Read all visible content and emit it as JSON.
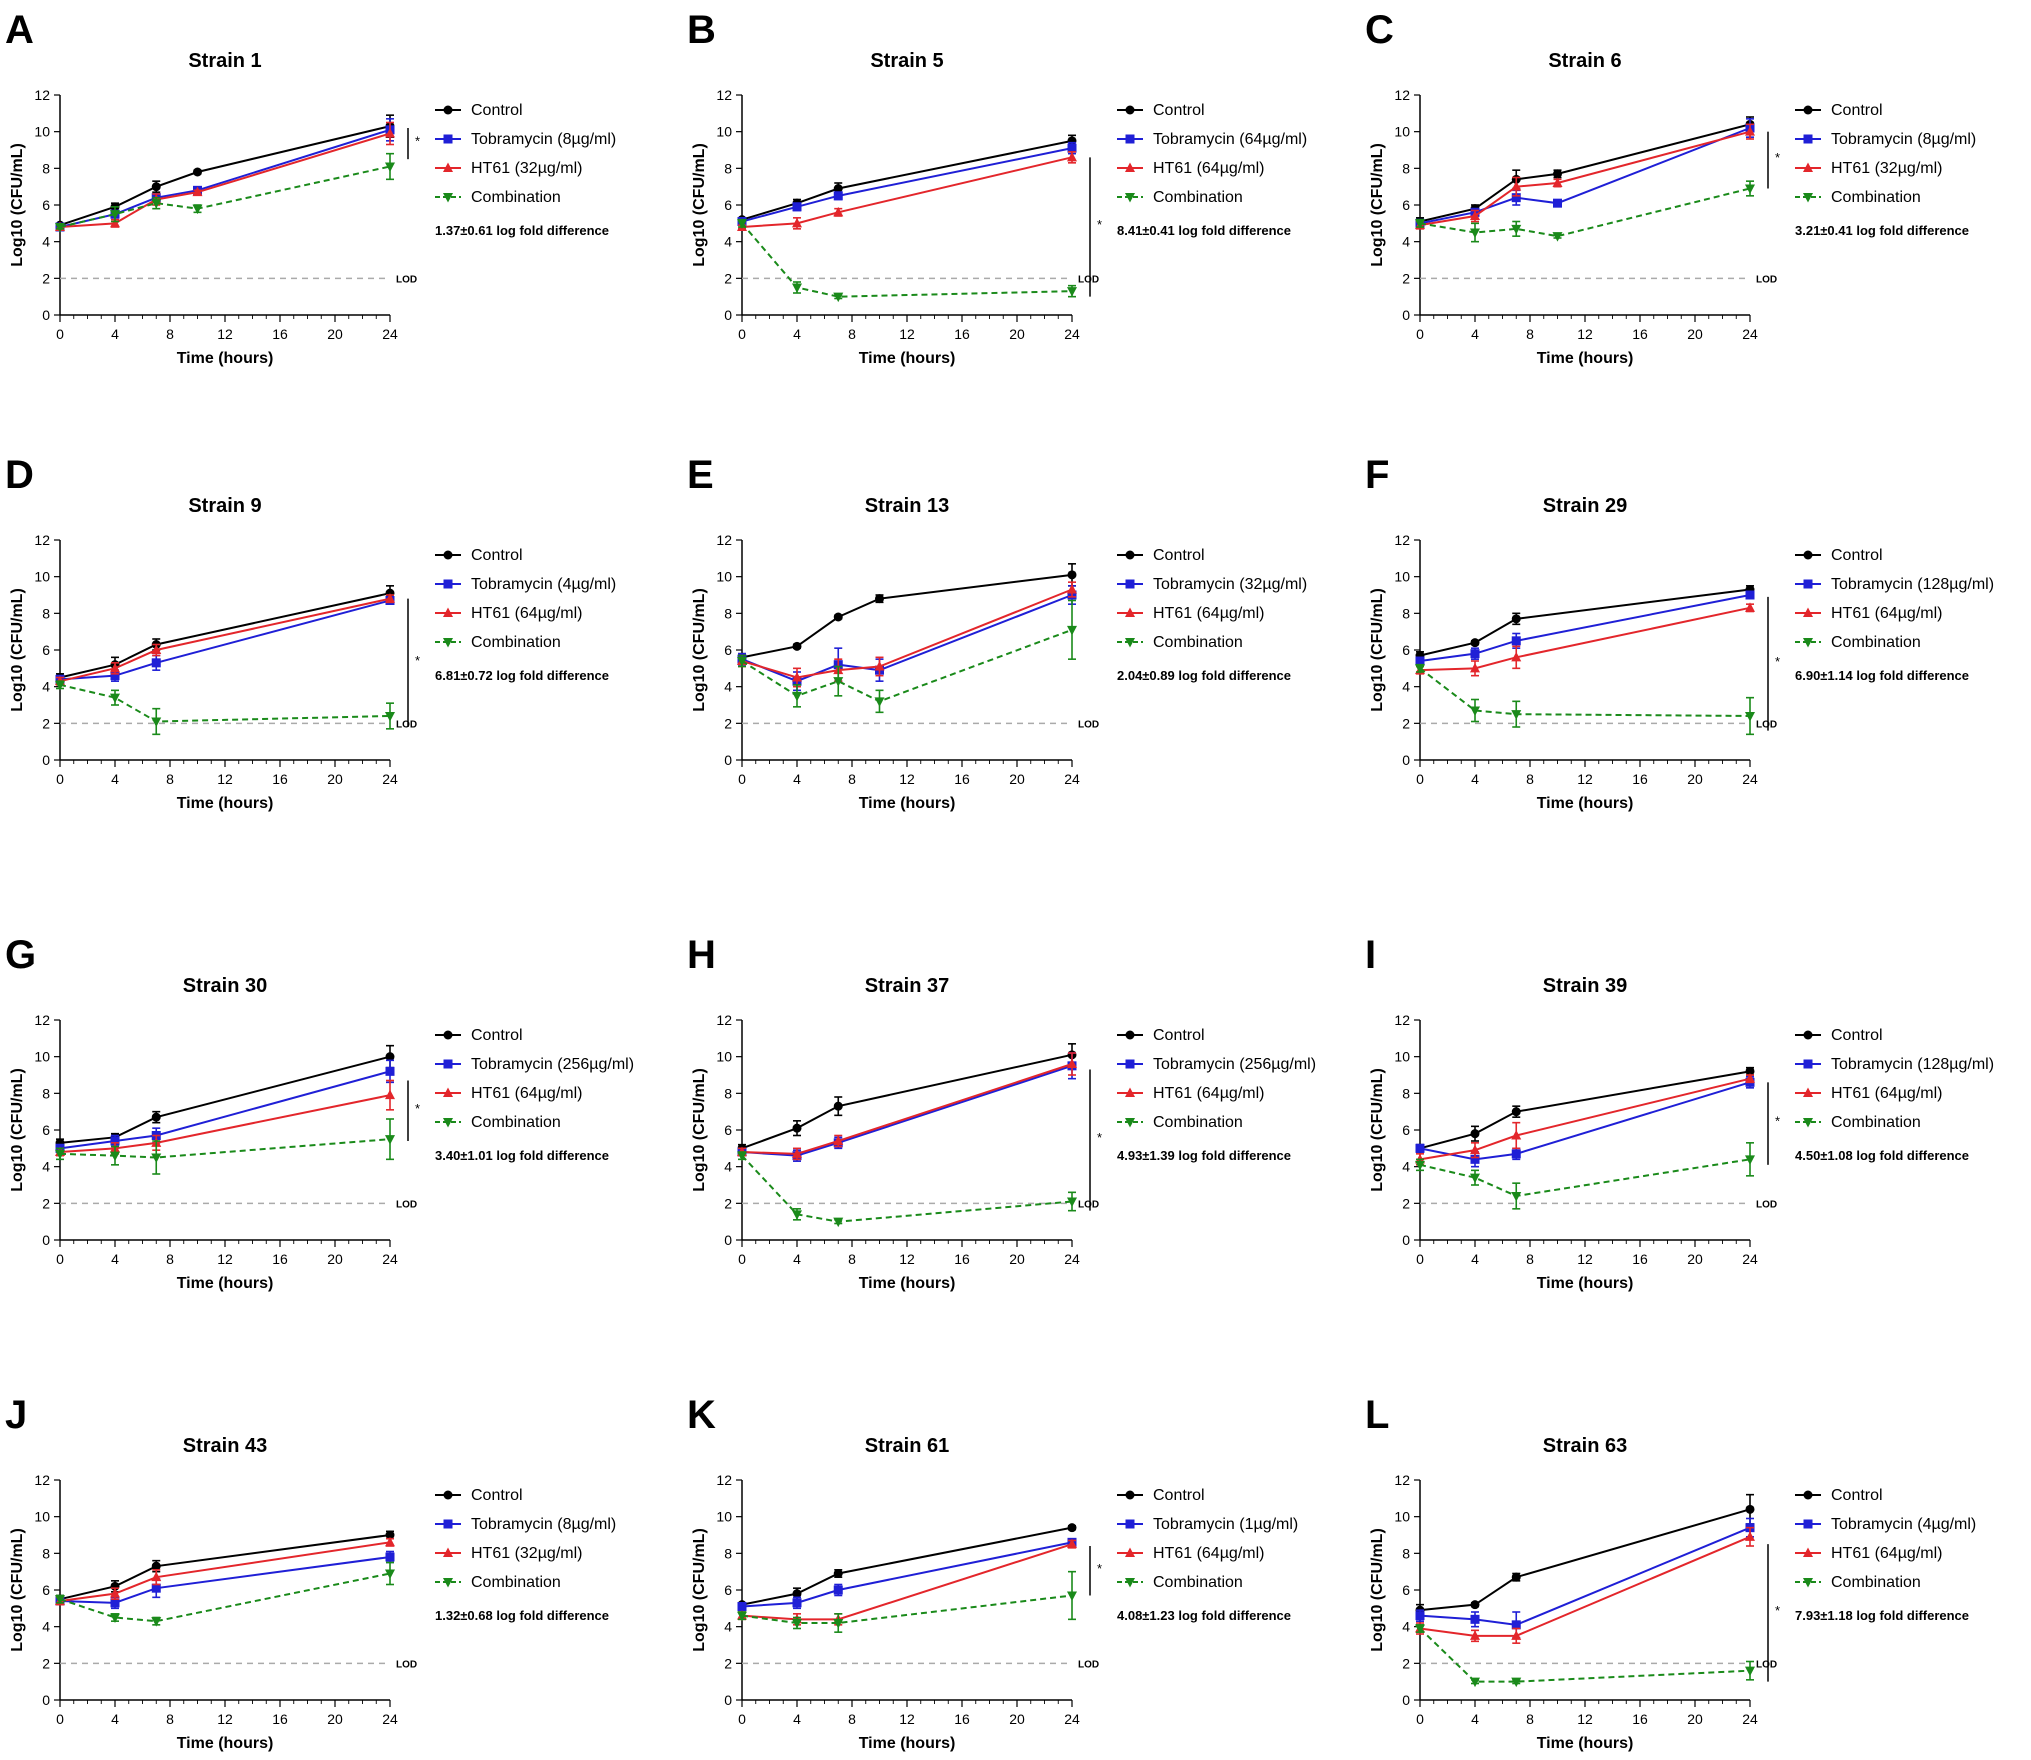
{
  "figure": {
    "xlabel": "Time (hours)",
    "ylabel": "Log10 (CFU/mL)",
    "lod_label": "LOD",
    "lod_value": 2,
    "significance_marker": "*",
    "xticks": [
      0,
      4,
      8,
      12,
      16,
      20,
      24
    ],
    "yticks": [
      0,
      2,
      4,
      6,
      8,
      10,
      12
    ],
    "xlim": [
      0,
      24
    ],
    "ylim": [
      0,
      12
    ],
    "series_colors": {
      "Control": "#000000",
      "Tobramycin": "#1f1fd6",
      "HT61": "#e3262b",
      "Combination": "#1a8a1a"
    }
  },
  "chart_data": [
    {
      "letter": "A",
      "type": "line",
      "title": "Strain 1",
      "x": [
        0,
        4,
        7,
        10,
        24
      ],
      "series": [
        {
          "name": "Control",
          "values": [
            4.9,
            5.9,
            7.0,
            7.8,
            10.3
          ],
          "err": [
            0.1,
            0.2,
            0.3,
            0.1,
            0.6
          ]
        },
        {
          "name": "Tobramycin (8µg/ml)",
          "values": [
            4.8,
            5.5,
            6.4,
            6.8,
            10.1
          ],
          "err": [
            0.1,
            0.2,
            0.2,
            0.1,
            0.6
          ]
        },
        {
          "name": "HT61 (32µg/ml)",
          "values": [
            4.8,
            5.0,
            6.3,
            6.7,
            9.9
          ],
          "err": [
            0.1,
            0.2,
            0.3,
            0.1,
            0.6
          ]
        },
        {
          "name": "Combination",
          "values": [
            4.8,
            5.5,
            6.1,
            5.8,
            8.1
          ],
          "err": [
            0.1,
            0.4,
            0.3,
            0.2,
            0.7
          ]
        }
      ],
      "fold_text": "1.37±0.61 log fold difference",
      "sig_top": 10.2,
      "sig_bottom": 8.5
    },
    {
      "letter": "B",
      "type": "line",
      "title": "Strain 5",
      "x": [
        0,
        4,
        7,
        24
      ],
      "series": [
        {
          "name": "Control",
          "values": [
            5.2,
            6.1,
            6.9,
            9.5
          ],
          "err": [
            0.1,
            0.2,
            0.3,
            0.3
          ]
        },
        {
          "name": "Tobramycin (64µg/ml)",
          "values": [
            5.1,
            5.9,
            6.5,
            9.1
          ],
          "err": [
            0.1,
            0.2,
            0.2,
            0.3
          ]
        },
        {
          "name": "HT61 (64µg/ml)",
          "values": [
            4.8,
            5.0,
            5.6,
            8.6
          ],
          "err": [
            0.1,
            0.3,
            0.2,
            0.3
          ]
        },
        {
          "name": "Combination",
          "values": [
            5.0,
            1.5,
            1.0,
            1.3
          ],
          "err": [
            0.2,
            0.3,
            0.1,
            0.3
          ]
        }
      ],
      "fold_text": "8.41±0.41 log fold difference",
      "sig_top": 8.6,
      "sig_bottom": 1.0
    },
    {
      "letter": "C",
      "type": "line",
      "title": "Strain 6",
      "x": [
        0,
        4,
        7,
        10,
        24
      ],
      "series": [
        {
          "name": "Control",
          "values": [
            5.1,
            5.8,
            7.4,
            7.7,
            10.4
          ],
          "err": [
            0.2,
            0.2,
            0.5,
            0.2,
            0.4
          ]
        },
        {
          "name": "Tobramycin (8µg/ml)",
          "values": [
            5.0,
            5.6,
            6.4,
            6.1,
            10.2
          ],
          "err": [
            0.2,
            0.2,
            0.4,
            0.1,
            0.5
          ]
        },
        {
          "name": "HT61 (32µg/ml)",
          "values": [
            4.9,
            5.4,
            7.0,
            7.2,
            10.0
          ],
          "err": [
            0.2,
            0.3,
            0.5,
            0.2,
            0.4
          ]
        },
        {
          "name": "Combination",
          "values": [
            5.0,
            4.5,
            4.7,
            4.3,
            6.9
          ],
          "err": [
            0.2,
            0.5,
            0.4,
            0.1,
            0.4
          ]
        }
      ],
      "fold_text": "3.21±0.41 log fold difference",
      "sig_top": 10.0,
      "sig_bottom": 6.9
    },
    {
      "letter": "D",
      "type": "line",
      "title": "Strain 9",
      "x": [
        0,
        4,
        7,
        24
      ],
      "series": [
        {
          "name": "Control",
          "values": [
            4.5,
            5.2,
            6.3,
            9.1
          ],
          "err": [
            0.2,
            0.4,
            0.3,
            0.4
          ]
        },
        {
          "name": "Tobramycin (4µg/ml)",
          "values": [
            4.4,
            4.6,
            5.3,
            8.7
          ],
          "err": [
            0.2,
            0.3,
            0.4,
            0.2
          ]
        },
        {
          "name": "HT61 (64µg/ml)",
          "values": [
            4.3,
            5.0,
            6.0,
            8.8
          ],
          "err": [
            0.2,
            0.3,
            0.3,
            0.2
          ]
        },
        {
          "name": "Combination",
          "values": [
            4.1,
            3.4,
            2.1,
            2.4
          ],
          "err": [
            0.2,
            0.4,
            0.7,
            0.7
          ]
        }
      ],
      "fold_text": "6.81±0.72 log fold difference",
      "sig_top": 8.8,
      "sig_bottom": 1.8
    },
    {
      "letter": "E",
      "type": "line",
      "title": "Strain 13",
      "x": [
        0,
        4,
        7,
        10,
        24
      ],
      "series": [
        {
          "name": "Control",
          "values": [
            5.6,
            6.2,
            7.8,
            8.8,
            10.1
          ],
          "err": [
            0.2,
            0.1,
            0.1,
            0.2,
            0.6
          ]
        },
        {
          "name": "Tobramycin (32µg/ml)",
          "values": [
            5.5,
            4.3,
            5.2,
            4.9,
            9.0
          ],
          "err": [
            0.3,
            0.5,
            0.9,
            0.6,
            0.5
          ]
        },
        {
          "name": "HT61 (64µg/ml)",
          "values": [
            5.4,
            4.5,
            4.9,
            5.1,
            9.3
          ],
          "err": [
            0.3,
            0.5,
            0.6,
            0.5,
            0.4
          ]
        },
        {
          "name": "Combination",
          "values": [
            5.4,
            3.5,
            4.3,
            3.2,
            7.1
          ],
          "err": [
            0.3,
            0.6,
            0.8,
            0.6,
            1.6
          ]
        }
      ],
      "fold_text": "2.04±0.89 log fold difference"
    },
    {
      "letter": "F",
      "type": "line",
      "title": "Strain 29",
      "x": [
        0,
        4,
        7,
        24
      ],
      "series": [
        {
          "name": "Control",
          "values": [
            5.7,
            6.4,
            7.7,
            9.3
          ],
          "err": [
            0.2,
            0.1,
            0.3,
            0.2
          ]
        },
        {
          "name": "Tobramycin (128µg/ml)",
          "values": [
            5.4,
            5.8,
            6.5,
            9.0
          ],
          "err": [
            0.2,
            0.3,
            0.4,
            0.2
          ]
        },
        {
          "name": "HT61 (64µg/ml)",
          "values": [
            4.9,
            5.0,
            5.6,
            8.3
          ],
          "err": [
            0.2,
            0.4,
            0.6,
            0.2
          ]
        },
        {
          "name": "Combination",
          "values": [
            5.0,
            2.7,
            2.5,
            2.4
          ],
          "err": [
            0.2,
            0.6,
            0.7,
            1.0
          ]
        }
      ],
      "fold_text": "6.90±1.14 log fold difference",
      "sig_top": 8.9,
      "sig_bottom": 1.6
    },
    {
      "letter": "G",
      "type": "line",
      "title": "Strain 30",
      "x": [
        0,
        4,
        7,
        24
      ],
      "series": [
        {
          "name": "Control",
          "values": [
            5.3,
            5.6,
            6.7,
            10.0
          ],
          "err": [
            0.2,
            0.2,
            0.3,
            0.6
          ]
        },
        {
          "name": "Tobramycin (256µg/ml)",
          "values": [
            5.0,
            5.4,
            5.7,
            9.2
          ],
          "err": [
            0.2,
            0.3,
            0.4,
            0.6
          ]
        },
        {
          "name": "HT61 (64µg/ml)",
          "values": [
            4.8,
            5.0,
            5.3,
            7.9
          ],
          "err": [
            0.2,
            0.3,
            0.4,
            0.8
          ]
        },
        {
          "name": "Combination",
          "values": [
            4.7,
            4.6,
            4.5,
            5.5
          ],
          "err": [
            0.3,
            0.5,
            0.9,
            1.1
          ]
        }
      ],
      "fold_text": "3.40±1.01 log fold difference",
      "sig_top": 8.7,
      "sig_bottom": 5.4
    },
    {
      "letter": "H",
      "type": "line",
      "title": "Strain 37",
      "x": [
        0,
        4,
        7,
        24
      ],
      "series": [
        {
          "name": "Control",
          "values": [
            5.0,
            6.1,
            7.3,
            10.1
          ],
          "err": [
            0.2,
            0.4,
            0.5,
            0.6
          ]
        },
        {
          "name": "Tobramycin (256µg/ml)",
          "values": [
            4.8,
            4.6,
            5.3,
            9.5
          ],
          "err": [
            0.2,
            0.3,
            0.3,
            0.7
          ]
        },
        {
          "name": "HT61 (64µg/ml)",
          "values": [
            4.8,
            4.7,
            5.4,
            9.6
          ],
          "err": [
            0.2,
            0.3,
            0.3,
            0.6
          ]
        },
        {
          "name": "Combination",
          "values": [
            4.6,
            1.4,
            1.0,
            2.1
          ],
          "err": [
            0.2,
            0.3,
            0.1,
            0.5
          ]
        }
      ],
      "fold_text": "4.93±1.39 log fold difference",
      "sig_top": 9.3,
      "sig_bottom": 1.6
    },
    {
      "letter": "I",
      "type": "line",
      "title": "Strain 39",
      "x": [
        0,
        4,
        7,
        24
      ],
      "series": [
        {
          "name": "Control",
          "values": [
            5.0,
            5.8,
            7.0,
            9.2
          ],
          "err": [
            0.2,
            0.4,
            0.3,
            0.2
          ]
        },
        {
          "name": "Tobramycin (128µg/ml)",
          "values": [
            5.0,
            4.4,
            4.7,
            8.6
          ],
          "err": [
            0.2,
            0.4,
            0.3,
            0.3
          ]
        },
        {
          "name": "HT61 (64µg/ml)",
          "values": [
            4.4,
            4.9,
            5.7,
            8.8
          ],
          "err": [
            0.3,
            0.4,
            0.7,
            0.2
          ]
        },
        {
          "name": "Combination",
          "values": [
            4.1,
            3.4,
            2.4,
            4.4
          ],
          "err": [
            0.3,
            0.4,
            0.7,
            0.9
          ]
        }
      ],
      "fold_text": "4.50±1.08 log fold difference",
      "sig_top": 8.6,
      "sig_bottom": 4.1
    },
    {
      "letter": "J",
      "type": "line",
      "title": "Strain 43",
      "x": [
        0,
        4,
        7,
        24
      ],
      "series": [
        {
          "name": "Control",
          "values": [
            5.5,
            6.2,
            7.3,
            9.0
          ],
          "err": [
            0.2,
            0.3,
            0.3,
            0.2
          ]
        },
        {
          "name": "Tobramycin (8µg/ml)",
          "values": [
            5.4,
            5.3,
            6.1,
            7.8
          ],
          "err": [
            0.2,
            0.3,
            0.5,
            0.3
          ]
        },
        {
          "name": "HT61 (32µg/ml)",
          "values": [
            5.4,
            5.8,
            6.7,
            8.6
          ],
          "err": [
            0.2,
            0.3,
            0.4,
            0.2
          ]
        },
        {
          "name": "Combination",
          "values": [
            5.5,
            4.5,
            4.3,
            6.9
          ],
          "err": [
            0.2,
            0.2,
            0.2,
            0.6
          ]
        }
      ],
      "fold_text": "1.32±0.68 log fold difference"
    },
    {
      "letter": "K",
      "type": "line",
      "title": "Strain 61",
      "x": [
        0,
        4,
        7,
        24
      ],
      "series": [
        {
          "name": "Control",
          "values": [
            5.2,
            5.8,
            6.9,
            9.4
          ],
          "err": [
            0.1,
            0.3,
            0.2,
            0.1
          ]
        },
        {
          "name": "Tobramycin (1µg/ml)",
          "values": [
            5.1,
            5.3,
            6.0,
            8.6
          ],
          "err": [
            0.1,
            0.3,
            0.3,
            0.1
          ]
        },
        {
          "name": "HT61 (64µg/ml)",
          "values": [
            4.6,
            4.4,
            4.4,
            8.5
          ],
          "err": [
            0.2,
            0.3,
            0.3,
            0.2
          ]
        },
        {
          "name": "Combination",
          "values": [
            4.6,
            4.2,
            4.2,
            5.7
          ],
          "err": [
            0.2,
            0.3,
            0.5,
            1.3
          ]
        }
      ],
      "fold_text": "4.08±1.23 log fold difference",
      "sig_top": 8.4,
      "sig_bottom": 5.7
    },
    {
      "letter": "L",
      "type": "line",
      "title": "Strain 63",
      "x": [
        0,
        4,
        7,
        24
      ],
      "series": [
        {
          "name": "Control",
          "values": [
            4.9,
            5.2,
            6.7,
            10.4
          ],
          "err": [
            0.3,
            0.1,
            0.2,
            0.8
          ]
        },
        {
          "name": "Tobramycin (4µg/ml)",
          "values": [
            4.6,
            4.4,
            4.1,
            9.4
          ],
          "err": [
            0.3,
            0.4,
            0.7,
            0.5
          ]
        },
        {
          "name": "HT61 (64µg/ml)",
          "values": [
            3.9,
            3.5,
            3.5,
            8.9
          ],
          "err": [
            0.3,
            0.3,
            0.4,
            0.5
          ]
        },
        {
          "name": "Combination",
          "values": [
            3.9,
            1.0,
            1.0,
            1.6
          ],
          "err": [
            0.2,
            0.1,
            0.1,
            0.5
          ]
        }
      ],
      "fold_text": "7.93±1.18 log fold difference",
      "sig_top": 8.5,
      "sig_bottom": 1.0
    }
  ]
}
